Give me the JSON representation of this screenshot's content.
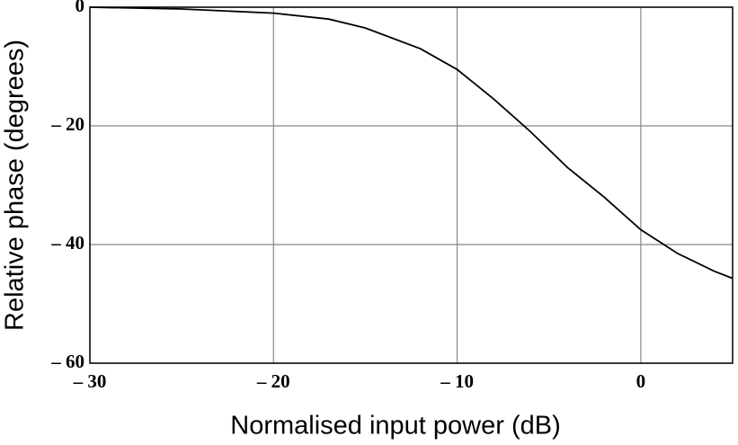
{
  "chart_data": {
    "type": "line",
    "x_label": "Normalised input power (dB)",
    "y_label": "Relative phase (degrees)",
    "x": [
      -30,
      -25,
      -20,
      -17,
      -15,
      -12,
      -10,
      -8,
      -6,
      -4,
      -2,
      0,
      2,
      4,
      5
    ],
    "series": [
      {
        "color": "#000000",
        "values": [
          0,
          -0.3,
          -1,
          -2,
          -3.5,
          -7,
          -10.5,
          -15.5,
          -21,
          -27,
          -32,
          -37.5,
          -41.5,
          -44.5,
          -45.7
        ]
      }
    ],
    "xlim": [
      -30,
      5
    ],
    "ylim": [
      -60,
      0
    ],
    "xticks": [
      {
        "value": -30,
        "label": "– 30"
      },
      {
        "value": -20,
        "label": "– 20"
      },
      {
        "value": -10,
        "label": "– 10"
      },
      0
    ],
    "yticks": [
      0,
      {
        "value": -20,
        "label": "– 20"
      },
      {
        "value": -40,
        "label": "– 40"
      },
      {
        "value": -60,
        "label": "– 60"
      }
    ],
    "grid": true
  }
}
